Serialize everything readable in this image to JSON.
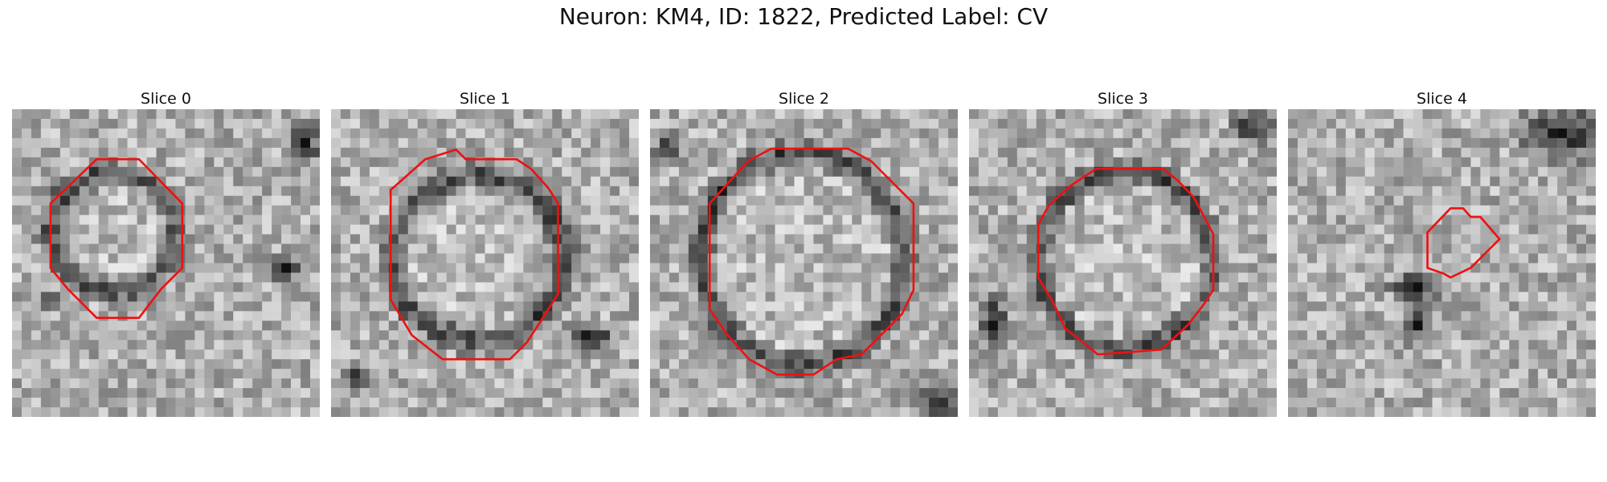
{
  "figure": {
    "title": "Neuron: KM4, ID: 1822, Predicted Label: CV",
    "contour_color": "#ee1111"
  },
  "panels": [
    {
      "title": "Slice 0"
    },
    {
      "title": "Slice 1"
    },
    {
      "title": "Slice 2"
    },
    {
      "title": "Slice 3"
    },
    {
      "title": "Slice 4"
    }
  ]
}
